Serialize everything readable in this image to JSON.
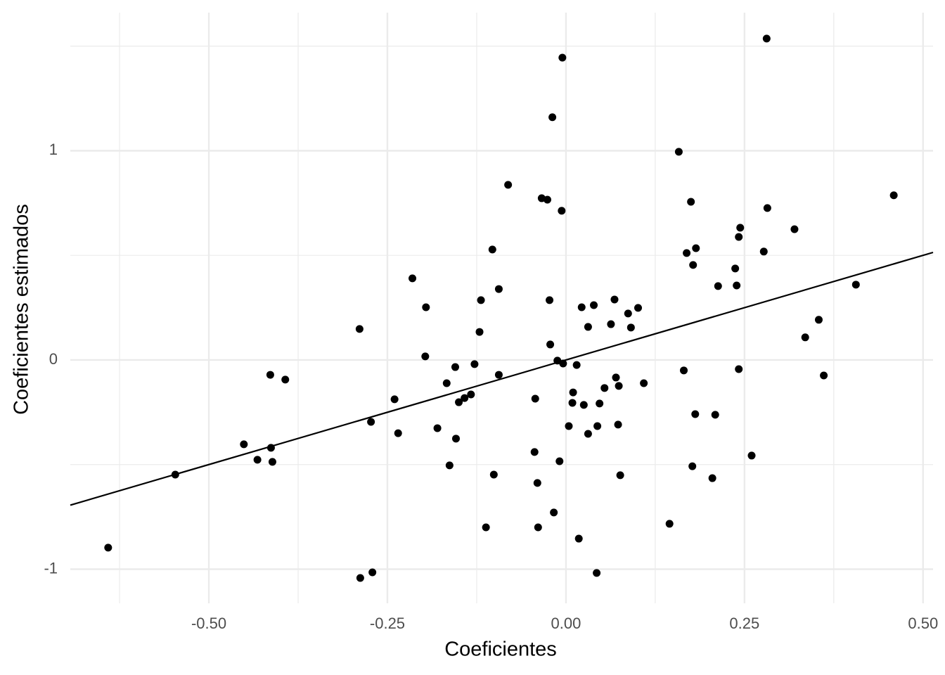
{
  "chart_data": {
    "type": "scatter",
    "x_label": "Coeficientes",
    "y_label": "Coeficientes estimados",
    "xlim": [
      -0.694,
      0.514
    ],
    "ylim": [
      -1.163,
      1.66
    ],
    "xticks": [
      {
        "value": -0.5,
        "label": "-0.50"
      },
      {
        "value": -0.25,
        "label": "-0.25"
      },
      {
        "value": 0,
        "label": "0.00"
      },
      {
        "value": 0.25,
        "label": "0.25"
      },
      {
        "value": 0.5,
        "label": "0.50"
      }
    ],
    "yticks": [
      -1,
      0,
      1
    ],
    "x_minor_grid": [
      -0.625,
      -0.375,
      -0.125,
      0.125,
      0.375
    ],
    "y_minor_grid": [
      -0.5,
      0.5,
      1.5
    ],
    "grid": true,
    "color": "#000000",
    "fit_line": {
      "intercept": 0,
      "slope": 1
    },
    "x": [
      0.281,
      -0.005,
      -0.019,
      0.158,
      -0.081,
      -0.034,
      -0.026,
      -0.006,
      0.459,
      0.175,
      0.282,
      0.244,
      0.32,
      0.242,
      0.182,
      0.169,
      0.277,
      -0.103,
      0.178,
      0.237,
      -0.215,
      0.213,
      0.239,
      0.406,
      -0.094,
      -0.119,
      -0.023,
      0.068,
      0.039,
      0.022,
      0.101,
      -0.196,
      0.087,
      0.354,
      0.063,
      0.031,
      0.091,
      -0.289,
      -0.121,
      0.335,
      -0.022,
      -0.197,
      -0.012,
      -0.004,
      0.015,
      -0.128,
      -0.155,
      0.165,
      0.242,
      -0.414,
      -0.094,
      0.361,
      -0.393,
      0.07,
      -0.167,
      0.074,
      0.109,
      0.054,
      0.01,
      -0.133,
      -0.142,
      -0.24,
      -0.043,
      -0.15,
      0.009,
      0.025,
      0.047,
      0.181,
      0.209,
      -0.273,
      0.004,
      0.044,
      0.073,
      -0.18,
      -0.235,
      0.031,
      -0.154,
      -0.451,
      -0.413,
      -0.044,
      0.26,
      -0.432,
      -0.411,
      -0.009,
      -0.163,
      0.177,
      -0.547,
      -0.101,
      0.076,
      0.205,
      -0.04,
      0.145,
      -0.112,
      -0.039,
      -0.017,
      0.018,
      -0.641,
      -0.271,
      -0.288,
      0.043
    ],
    "y": [
      1.536,
      1.445,
      1.16,
      0.995,
      0.837,
      0.773,
      0.766,
      0.713,
      0.787,
      0.756,
      0.726,
      0.632,
      0.625,
      0.588,
      0.534,
      0.511,
      0.518,
      0.528,
      0.454,
      0.437,
      0.39,
      0.353,
      0.356,
      0.36,
      0.339,
      0.286,
      0.286,
      0.289,
      0.262,
      0.252,
      0.249,
      0.252,
      0.222,
      0.192,
      0.171,
      0.158,
      0.155,
      0.148,
      0.134,
      0.108,
      0.074,
      0.017,
      -0.003,
      -0.017,
      -0.024,
      -0.02,
      -0.034,
      -0.05,
      -0.044,
      -0.071,
      -0.071,
      -0.074,
      -0.094,
      -0.084,
      -0.111,
      -0.124,
      -0.111,
      -0.134,
      -0.155,
      -0.165,
      -0.182,
      -0.188,
      -0.185,
      -0.202,
      -0.205,
      -0.215,
      -0.208,
      -0.259,
      -0.262,
      -0.296,
      -0.316,
      -0.316,
      -0.309,
      -0.326,
      -0.35,
      -0.353,
      -0.376,
      -0.403,
      -0.42,
      -0.44,
      -0.457,
      -0.477,
      -0.487,
      -0.484,
      -0.504,
      -0.508,
      -0.548,
      -0.548,
      -0.551,
      -0.565,
      -0.588,
      -0.783,
      -0.8,
      -0.8,
      -0.729,
      -0.854,
      -0.897,
      -1.015,
      -1.042,
      -1.018
    ]
  }
}
